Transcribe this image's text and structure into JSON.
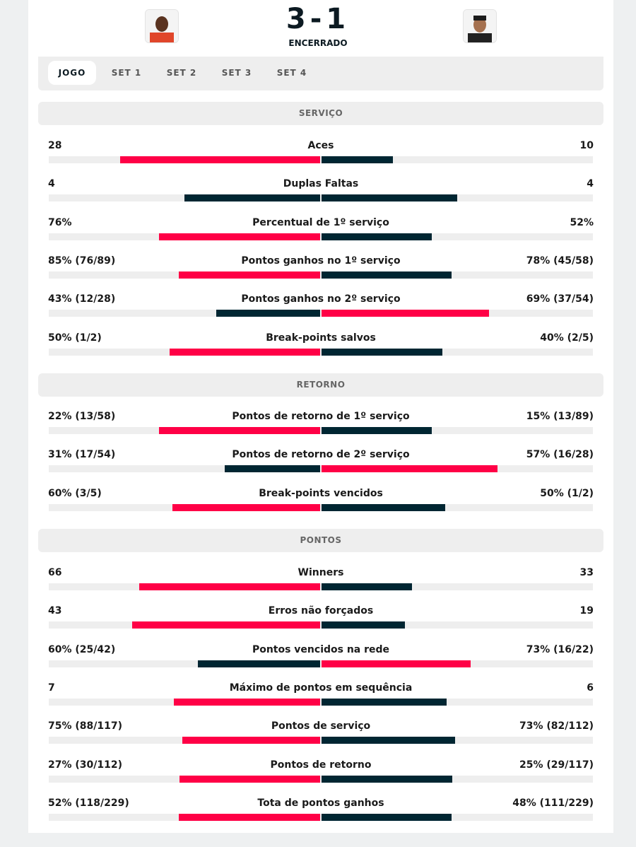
{
  "header": {
    "score": "3-1",
    "status": "ENCERRADO"
  },
  "tabs": [
    "JOGO",
    "SET 1",
    "SET 2",
    "SET 3",
    "SET 4"
  ],
  "sections": [
    {
      "title": "SERVIÇO",
      "stats": [
        {
          "label": "Aces",
          "home": "28",
          "away": "10"
        },
        {
          "label": "Duplas Faltas",
          "home": "4",
          "away": "4"
        },
        {
          "label": "Percentual de 1º serviço",
          "home": "76%",
          "away": "52%"
        },
        {
          "label": "Pontos ganhos no 1º serviço",
          "home": "85% (76/89)",
          "away": "78% (45/58)"
        },
        {
          "label": "Pontos ganhos no 2º serviço",
          "home": "43% (12/28)",
          "away": "69% (37/54)"
        },
        {
          "label": "Break-points salvos",
          "home": "50% (1/2)",
          "away": "40% (2/5)"
        }
      ]
    },
    {
      "title": "RETORNO",
      "stats": [
        {
          "label": "Pontos de retorno de 1º serviço",
          "home": "22% (13/58)",
          "away": "15% (13/89)"
        },
        {
          "label": "Pontos de retorno de 2º serviço",
          "home": "31% (17/54)",
          "away": "57% (16/28)"
        },
        {
          "label": "Break-points vencidos",
          "home": "60% (3/5)",
          "away": "50% (1/2)"
        }
      ]
    },
    {
      "title": "PONTOS",
      "stats": [
        {
          "label": "Winners",
          "home": "66",
          "away": "33"
        },
        {
          "label": "Erros não forçados",
          "home": "43",
          "away": "19"
        },
        {
          "label": "Pontos vencidos na rede",
          "home": "60% (25/42)",
          "away": "73% (16/22)"
        },
        {
          "label": "Máximo de pontos em sequência",
          "home": "7",
          "away": "6"
        },
        {
          "label": "Pontos de serviço",
          "home": "75% (88/117)",
          "away": "73% (82/112)"
        },
        {
          "label": "Pontos de retorno",
          "home": "27% (30/112)",
          "away": "25% (29/117)"
        },
        {
          "label": "Tota de pontos ganhos",
          "home": "52% (118/229)",
          "away": "48% (111/229)"
        }
      ]
    }
  ]
}
